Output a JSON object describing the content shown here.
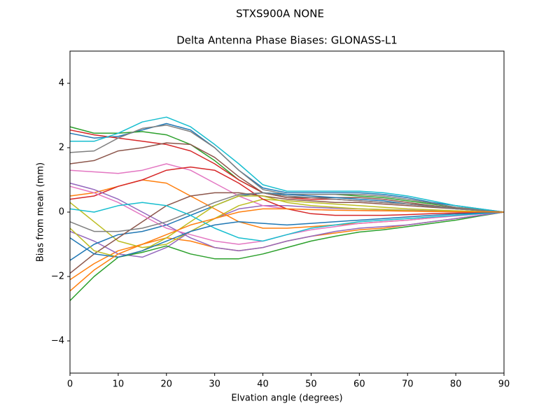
{
  "chart_data": {
    "type": "line",
    "suptitle": "STXS900A         NONE",
    "title": "Delta Antenna Phase Biases: GLONASS-L1",
    "xlabel": "Elvation angle (degrees)",
    "ylabel": "Bias from mean (mm)",
    "x": [
      0,
      5,
      10,
      15,
      20,
      25,
      30,
      35,
      40,
      45,
      50,
      55,
      60,
      65,
      70,
      75,
      80,
      85,
      90
    ],
    "xlim": [
      0,
      90
    ],
    "xticks": [
      0,
      10,
      20,
      30,
      40,
      50,
      60,
      70,
      80,
      90
    ],
    "ylim": [
      -5,
      5
    ],
    "yticks": [
      {
        "value": -4,
        "label": "−4"
      },
      {
        "value": -2,
        "label": "−2"
      },
      0,
      2,
      4
    ],
    "grid": false,
    "series": [
      {
        "color": "#1f77b4",
        "values": [
          2.45,
          2.3,
          2.35,
          2.55,
          2.75,
          2.55,
          2.0,
          1.3,
          0.75,
          0.6,
          0.6,
          0.6,
          0.6,
          0.55,
          0.45,
          0.3,
          0.2,
          0.1,
          0
        ]
      },
      {
        "color": "#ff7f0e",
        "values": [
          -2.1,
          -1.6,
          -1.2,
          -1.0,
          -0.8,
          -0.9,
          -1.1,
          -1.2,
          -1.1,
          -0.9,
          -0.75,
          -0.65,
          -0.55,
          -0.5,
          -0.4,
          -0.3,
          -0.2,
          -0.1,
          0
        ]
      },
      {
        "color": "#2ca02c",
        "values": [
          2.65,
          2.45,
          2.45,
          2.5,
          2.4,
          2.1,
          1.6,
          1.0,
          0.6,
          0.55,
          0.55,
          0.55,
          0.5,
          0.45,
          0.35,
          0.25,
          0.15,
          0.08,
          0
        ]
      },
      {
        "color": "#d62728",
        "values": [
          2.55,
          2.4,
          2.3,
          2.2,
          2.1,
          1.9,
          1.5,
          1.0,
          0.6,
          0.45,
          0.4,
          0.4,
          0.35,
          0.3,
          0.25,
          0.2,
          0.12,
          0.06,
          0
        ]
      },
      {
        "color": "#9467bd",
        "values": [
          -0.6,
          -0.9,
          -1.3,
          -1.4,
          -1.1,
          -0.6,
          -0.2,
          0.1,
          0.2,
          0.2,
          0.15,
          0.12,
          0.1,
          0.08,
          0.06,
          0.04,
          0.02,
          0.01,
          0
        ]
      },
      {
        "color": "#8c564b",
        "values": [
          1.5,
          1.6,
          1.9,
          2.0,
          2.15,
          2.1,
          1.7,
          1.1,
          0.6,
          0.45,
          0.45,
          0.45,
          0.45,
          0.4,
          0.3,
          0.2,
          0.12,
          0.06,
          0
        ]
      },
      {
        "color": "#e377c2",
        "values": [
          1.3,
          1.25,
          1.2,
          1.3,
          1.5,
          1.3,
          0.9,
          0.5,
          0.2,
          0.1,
          0.08,
          0.06,
          0.05,
          0.04,
          0.03,
          0.02,
          0.01,
          0.005,
          0
        ]
      },
      {
        "color": "#7f7f7f",
        "values": [
          1.85,
          1.9,
          2.3,
          2.6,
          2.7,
          2.5,
          2.0,
          1.3,
          0.7,
          0.55,
          0.55,
          0.55,
          0.55,
          0.5,
          0.4,
          0.28,
          0.15,
          0.08,
          0
        ]
      },
      {
        "color": "#bcbd22",
        "values": [
          0.3,
          -0.3,
          -0.9,
          -1.1,
          -1.0,
          -0.6,
          -0.2,
          0.2,
          0.4,
          0.35,
          0.3,
          0.25,
          0.2,
          0.15,
          0.1,
          0.07,
          0.04,
          0.02,
          0
        ]
      },
      {
        "color": "#17becf",
        "values": [
          2.2,
          2.2,
          2.45,
          2.8,
          2.95,
          2.65,
          2.1,
          1.5,
          0.85,
          0.65,
          0.65,
          0.65,
          0.65,
          0.6,
          0.5,
          0.35,
          0.2,
          0.1,
          0
        ]
      },
      {
        "color": "#1f77b4",
        "values": [
          -1.5,
          -1.0,
          -0.7,
          -0.6,
          -0.4,
          -0.1,
          0.2,
          0.5,
          0.6,
          0.55,
          0.5,
          0.45,
          0.4,
          0.35,
          0.25,
          0.18,
          0.1,
          0.05,
          0
        ]
      },
      {
        "color": "#ff7f0e",
        "values": [
          0.5,
          0.6,
          0.8,
          1.0,
          0.9,
          0.5,
          0.1,
          -0.3,
          -0.5,
          -0.5,
          -0.45,
          -0.4,
          -0.35,
          -0.3,
          -0.25,
          -0.18,
          -0.1,
          -0.05,
          0
        ]
      },
      {
        "color": "#2ca02c",
        "values": [
          -2.75,
          -2.0,
          -1.4,
          -1.25,
          -1.05,
          -1.3,
          -1.45,
          -1.45,
          -1.3,
          -1.1,
          -0.9,
          -0.75,
          -0.62,
          -0.55,
          -0.45,
          -0.35,
          -0.25,
          -0.12,
          0
        ]
      },
      {
        "color": "#d62728",
        "values": [
          0.4,
          0.5,
          0.8,
          1.0,
          1.3,
          1.4,
          1.3,
          0.9,
          0.4,
          0.1,
          -0.05,
          -0.1,
          -0.1,
          -0.1,
          -0.08,
          -0.05,
          -0.03,
          -0.01,
          0
        ]
      },
      {
        "color": "#9467bd",
        "values": [
          0.9,
          0.7,
          0.4,
          0.0,
          -0.4,
          -0.8,
          -1.1,
          -1.2,
          -1.1,
          -0.9,
          -0.75,
          -0.6,
          -0.5,
          -0.45,
          -0.4,
          -0.3,
          -0.2,
          -0.1,
          0
        ]
      },
      {
        "color": "#8c564b",
        "values": [
          -1.9,
          -1.3,
          -0.8,
          -0.3,
          0.2,
          0.5,
          0.6,
          0.6,
          0.5,
          0.4,
          0.35,
          0.3,
          0.3,
          0.25,
          0.2,
          0.15,
          0.1,
          0.05,
          0
        ]
      },
      {
        "color": "#e377c2",
        "values": [
          0.8,
          0.6,
          0.3,
          -0.1,
          -0.5,
          -0.7,
          -0.9,
          -1.0,
          -0.9,
          -0.7,
          -0.55,
          -0.45,
          -0.35,
          -0.3,
          -0.25,
          -0.18,
          -0.12,
          -0.06,
          0
        ]
      },
      {
        "color": "#7f7f7f",
        "values": [
          -0.3,
          -0.6,
          -0.6,
          -0.5,
          -0.3,
          0.0,
          0.3,
          0.55,
          0.6,
          0.5,
          0.45,
          0.4,
          0.35,
          0.3,
          0.25,
          0.18,
          0.1,
          0.05,
          0
        ]
      },
      {
        "color": "#bcbd22",
        "values": [
          -0.5,
          -1.2,
          -1.4,
          -1.2,
          -0.8,
          -0.3,
          0.2,
          0.5,
          0.5,
          0.3,
          0.2,
          0.15,
          0.1,
          0.08,
          0.05,
          0.03,
          0.02,
          0.01,
          0
        ]
      },
      {
        "color": "#17becf",
        "values": [
          0.1,
          0.0,
          0.2,
          0.3,
          0.2,
          -0.1,
          -0.5,
          -0.8,
          -0.9,
          -0.7,
          -0.5,
          -0.4,
          -0.3,
          -0.25,
          -0.2,
          -0.15,
          -0.1,
          -0.05,
          0
        ]
      },
      {
        "color": "#1f77b4",
        "values": [
          -0.8,
          -1.3,
          -1.4,
          -1.2,
          -0.9,
          -0.6,
          -0.4,
          -0.3,
          -0.35,
          -0.4,
          -0.35,
          -0.3,
          -0.25,
          -0.2,
          -0.15,
          -0.1,
          -0.06,
          -0.03,
          0
        ]
      },
      {
        "color": "#ff7f0e",
        "values": [
          -2.45,
          -1.8,
          -1.3,
          -1.0,
          -0.7,
          -0.4,
          -0.2,
          0.0,
          0.1,
          0.1,
          0.08,
          0.06,
          0.05,
          0.04,
          0.03,
          0.02,
          0.01,
          0.005,
          0
        ]
      }
    ]
  }
}
